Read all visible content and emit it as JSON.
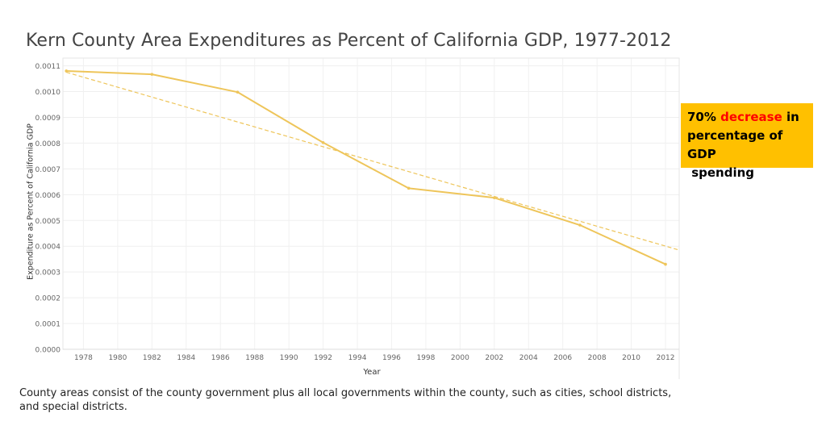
{
  "title": "Kern County Area Expenditures as Percent of California GDP, 1977-2012",
  "callout": {
    "prefix": "70% ",
    "highlight": "decrease",
    "line1_suffix": " in",
    "line2": "percentage of GDP",
    "line3": " spending",
    "highlight_color": "#ff0000",
    "background": "#ffc000"
  },
  "caption": "County areas consist of the county government plus all local governments within the county, such as cities, school districts, and special districts.",
  "chart_data": {
    "type": "line",
    "title": "Kern County Area Expenditures as Percent of California GDP, 1977-2012",
    "xlabel": "Year",
    "ylabel": "Expenditure as Percent of California GDP",
    "xlim": [
      1976.8,
      2012.8
    ],
    "ylim": [
      0.0,
      0.00113
    ],
    "x_ticks": [
      1978,
      1980,
      1982,
      1984,
      1986,
      1988,
      1990,
      1992,
      1994,
      1996,
      1998,
      2000,
      2002,
      2004,
      2006,
      2008,
      2010,
      2012
    ],
    "y_ticks": [
      0.0,
      0.0001,
      0.0002,
      0.0003,
      0.0004,
      0.0005,
      0.0006,
      0.0007,
      0.0008,
      0.0009,
      0.001,
      0.0011
    ],
    "y_tick_labels": [
      "0.0000",
      "0.0001",
      "0.0002",
      "0.0003",
      "0.0004",
      "0.0005",
      "0.0006",
      "0.0007",
      "0.0008",
      "0.0009",
      "0.0010",
      "0.0011"
    ],
    "grid": true,
    "series": [
      {
        "x": [
          1977,
          1982,
          1987,
          1992,
          1997,
          2002,
          2007,
          2012
        ],
        "values": [
          0.00108,
          0.001067,
          0.000998,
          0.000802,
          0.000625,
          0.000588,
          0.000482,
          0.00033
        ],
        "color": "#eec55a"
      }
    ],
    "trendline": {
      "x": [
        1977,
        2012.8
      ],
      "values": [
        0.001075,
        0.000385
      ],
      "style": "dashed",
      "color": "#eec55a"
    }
  }
}
